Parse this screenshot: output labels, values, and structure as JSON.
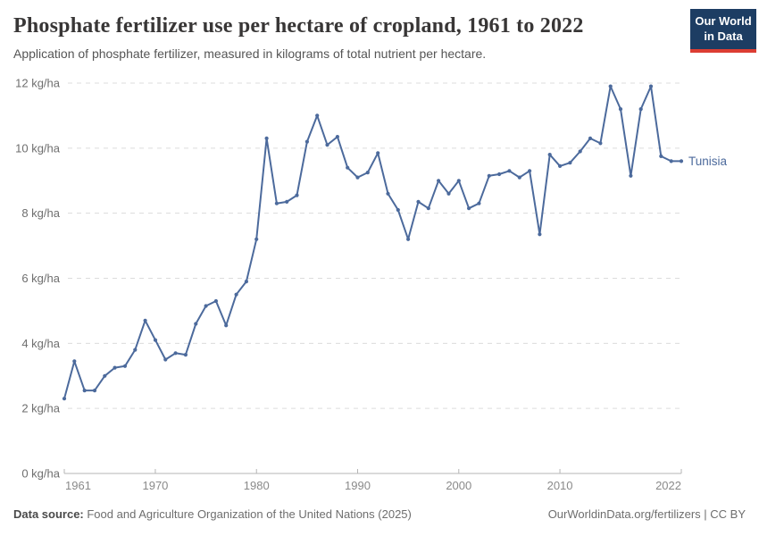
{
  "header": {
    "title": "Phosphate fertilizer use per hectare of cropland, 1961 to 2022",
    "subtitle": "Application of phosphate fertilizer, measured in kilograms of total nutrient per hectare.",
    "logo": {
      "line1": "Our World",
      "line2": "in Data"
    }
  },
  "chart_data": {
    "type": "line",
    "title": "Phosphate fertilizer use per hectare of cropland, 1961 to 2022",
    "xlabel": "",
    "ylabel": "kg/ha",
    "xlim": [
      1961,
      2022
    ],
    "ylim": [
      0,
      12
    ],
    "x_ticks": [
      1961,
      1970,
      1980,
      1990,
      2000,
      2010,
      2022
    ],
    "y_ticks": [
      0,
      2,
      4,
      6,
      8,
      10,
      12
    ],
    "y_tick_suffix": " kg/ha",
    "grid": "horizontal-dashed",
    "legend_position": "end-of-line",
    "years": [
      1961,
      1962,
      1963,
      1964,
      1965,
      1966,
      1967,
      1968,
      1969,
      1970,
      1971,
      1972,
      1973,
      1974,
      1975,
      1976,
      1977,
      1978,
      1979,
      1980,
      1981,
      1982,
      1983,
      1984,
      1985,
      1986,
      1987,
      1988,
      1989,
      1990,
      1991,
      1992,
      1993,
      1994,
      1995,
      1996,
      1997,
      1998,
      1999,
      2000,
      2001,
      2002,
      2003,
      2004,
      2005,
      2006,
      2007,
      2008,
      2009,
      2010,
      2011,
      2012,
      2013,
      2014,
      2015,
      2016,
      2017,
      2018,
      2019,
      2020,
      2021,
      2022
    ],
    "series": [
      {
        "name": "Tunisia",
        "color": "#4C6A9C",
        "values": [
          2.3,
          3.45,
          2.55,
          2.55,
          3.0,
          3.25,
          3.3,
          3.8,
          4.7,
          4.1,
          3.5,
          3.7,
          3.65,
          4.6,
          5.15,
          5.3,
          4.55,
          5.5,
          5.9,
          7.2,
          10.3,
          8.3,
          8.35,
          8.55,
          10.2,
          11.0,
          10.1,
          10.35,
          9.4,
          9.1,
          9.25,
          9.85,
          8.6,
          8.1,
          7.2,
          8.35,
          8.15,
          9.0,
          8.6,
          9.0,
          8.15,
          8.3,
          9.15,
          9.2,
          9.3,
          9.1,
          9.3,
          7.35,
          9.8,
          9.45,
          9.55,
          9.9,
          10.3,
          10.15,
          11.9,
          11.2,
          9.15,
          11.2,
          11.9,
          9.75,
          9.6,
          9.6
        ]
      }
    ]
  },
  "footer": {
    "source_label": "Data source:",
    "source_text": " Food and Agriculture Organization of the United Nations (2025)",
    "link_text": "OurWorldinData.org/fertilizers | CC BY"
  },
  "colors": {
    "line": "#4C6A9C",
    "logo_navy": "#1d3d63",
    "logo_red": "#dc3d33",
    "gridline": "#dcdcdc",
    "axis": "#b5b5b5",
    "y_tick_label": "#6e6e6e",
    "x_tick_label": "#8a8a8a"
  }
}
